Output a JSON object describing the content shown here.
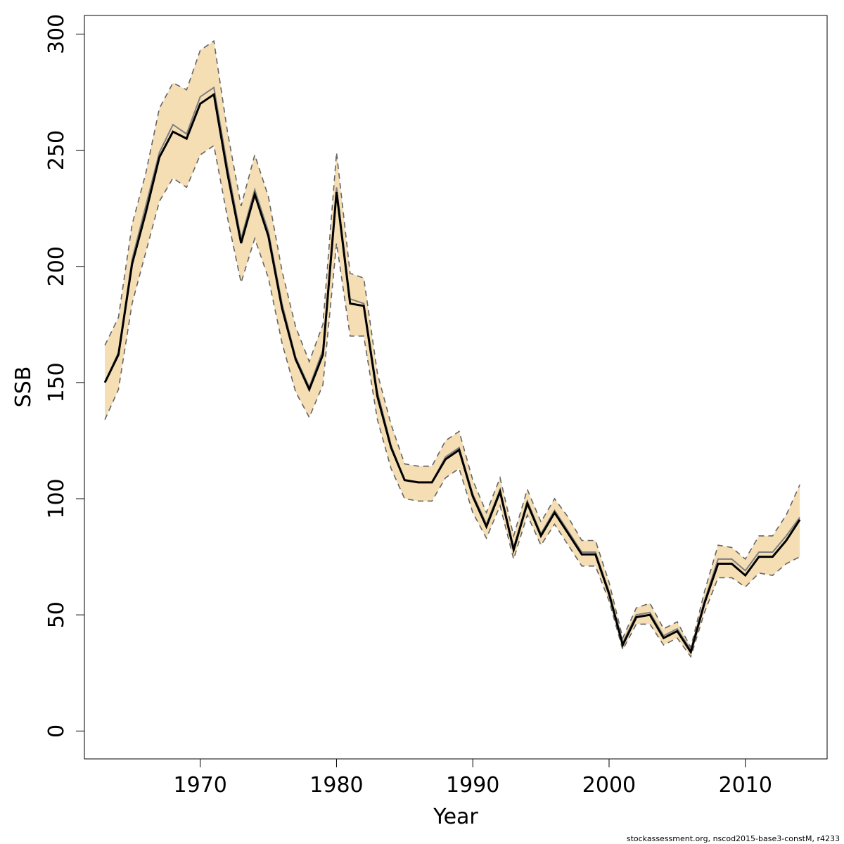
{
  "chart_data": {
    "type": "area",
    "title": "",
    "xlabel": "Year",
    "ylabel": "SSB",
    "xlim": [
      1961.5,
      2016.0
    ],
    "ylim": [
      -12,
      308
    ],
    "xticks": [
      1970,
      1980,
      1990,
      2000,
      2010
    ],
    "yticks": [
      0,
      50,
      100,
      150,
      200,
      250,
      300
    ],
    "grid": false,
    "legend": "none",
    "x": [
      1963,
      1964,
      1965,
      1966,
      1967,
      1968,
      1969,
      1970,
      1971,
      1972,
      1973,
      1974,
      1975,
      1976,
      1977,
      1978,
      1979,
      1980,
      1981,
      1982,
      1983,
      1984,
      1985,
      1986,
      1987,
      1988,
      1989,
      1990,
      1991,
      1992,
      1993,
      1994,
      1995,
      1996,
      1997,
      1998,
      1999,
      2000,
      2001,
      2002,
      2003,
      2004,
      2005,
      2006,
      2007,
      2008,
      2009,
      2010,
      2011,
      2012,
      2013,
      2014
    ],
    "series": [
      {
        "role": "estimate",
        "values": [
          150,
          162,
          201,
          223,
          247,
          258,
          255,
          270,
          274,
          240,
          210,
          231,
          213,
          182,
          160,
          147,
          162,
          232,
          184,
          183,
          144,
          122,
          108,
          107,
          107,
          117,
          121,
          101,
          88,
          103,
          78,
          98,
          84,
          94,
          85,
          76,
          76,
          59,
          37,
          49,
          50,
          40,
          43,
          34,
          55,
          72,
          72,
          67,
          75,
          75,
          82,
          91
        ]
      },
      {
        "role": "estimate-alt",
        "values": [
          150,
          163,
          203,
          226,
          249,
          261,
          257,
          273,
          277,
          243,
          212,
          233,
          215,
          184,
          161,
          148,
          164,
          234,
          186,
          184,
          146,
          123,
          108,
          107,
          107,
          118,
          122,
          102,
          89,
          104,
          79,
          99,
          85,
          95,
          86,
          77,
          77,
          60,
          38,
          50,
          51,
          41,
          44,
          35,
          56,
          74,
          74,
          69,
          77,
          77,
          84,
          92
        ]
      },
      {
        "role": "ci-upper",
        "values": [
          166,
          178,
          218,
          240,
          268,
          279,
          276,
          293,
          297,
          258,
          226,
          248,
          230,
          198,
          174,
          159,
          175,
          249,
          197,
          195,
          154,
          132,
          115,
          114,
          114,
          125,
          129,
          108,
          94,
          109,
          84,
          104,
          90,
          100,
          92,
          82,
          82,
          64,
          40,
          53,
          55,
          44,
          47,
          36,
          60,
          80,
          79,
          74,
          84,
          84,
          93,
          106
        ]
      },
      {
        "role": "ci-lower",
        "values": [
          134,
          147,
          184,
          206,
          228,
          238,
          234,
          248,
          252,
          221,
          193,
          212,
          195,
          167,
          146,
          135,
          149,
          210,
          170,
          170,
          134,
          113,
          100,
          99,
          99,
          109,
          113,
          94,
          83,
          97,
          74,
          93,
          80,
          89,
          80,
          71,
          71,
          56,
          35,
          46,
          46,
          37,
          40,
          32,
          51,
          66,
          66,
          62,
          68,
          67,
          72,
          75
        ]
      }
    ],
    "colors": {
      "band": "#f5deb3",
      "estimate": "#000000",
      "estimate_alt": "#808080",
      "ci": "#666666",
      "axes": "#000000"
    },
    "footer_text": "stockassessment.org, nscod2015-base3-constM, r4233"
  }
}
